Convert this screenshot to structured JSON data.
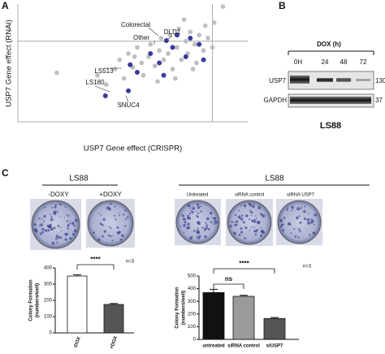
{
  "panel_labels": [
    "A",
    "B",
    "C"
  ],
  "chart_data": [
    {
      "type": "scatter",
      "xlabel": "USP7 Gene effect (CRISPR)",
      "ylabel": "USP7 Gene effect (RNAi)",
      "xlim": [
        -2.2,
        0.4
      ],
      "ylim": [
        -1.3,
        0.6
      ],
      "reference_lines": {
        "x": 0,
        "y": 0
      },
      "series": [
        {
          "name": "Other",
          "color": "#bfbfbf",
          "x": [
            -1.76,
            0.12,
            -1.3,
            -1.2,
            -1.1,
            -1.05,
            -1.0,
            -0.95,
            -0.9,
            -0.85,
            -0.8,
            -0.78,
            -0.72,
            -0.7,
            -0.65,
            -0.6,
            -0.58,
            -0.55,
            -0.5,
            -0.48,
            -0.45,
            -0.4,
            -0.38,
            -0.35,
            -0.3,
            -0.28,
            -0.25,
            -0.2,
            -0.18,
            -0.15,
            -0.1,
            -0.08,
            -0.05,
            0.0,
            0.02,
            -0.62,
            -0.42,
            -0.88,
            -0.32,
            -0.22
          ],
          "y": [
            -0.51,
            0.56,
            -0.55,
            -0.7,
            -0.45,
            -0.3,
            -0.6,
            -0.2,
            -0.42,
            -0.1,
            -0.35,
            -0.55,
            -0.25,
            -0.05,
            -0.4,
            -0.15,
            0.05,
            -0.3,
            -0.2,
            0.1,
            -0.45,
            -0.1,
            0.2,
            -0.3,
            0.0,
            -0.2,
            0.15,
            -0.05,
            -0.35,
            0.1,
            -0.15,
            0.25,
            0.05,
            -0.1,
            0.3,
            -0.65,
            -0.6,
            -0.25,
            0.35,
            -0.45
          ]
        },
        {
          "name": "Colorectal",
          "color": "#3a3a9c",
          "x": [
            -1.21,
            -0.95,
            -0.93,
            -0.85,
            -0.7,
            -0.6,
            -0.52,
            -0.45,
            -0.4,
            -0.3,
            -0.25,
            -0.15,
            -0.1,
            -0.55
          ],
          "y": [
            -0.88,
            -0.8,
            -0.38,
            -0.5,
            -0.2,
            -0.35,
            0.01,
            -0.1,
            0.1,
            -0.25,
            0.05,
            -0.05,
            -0.3,
            -0.55
          ]
        }
      ],
      "annotations": [
        "DLD1",
        "LS513",
        "LS180",
        "SNUC4"
      ]
    },
    {
      "type": "bar",
      "ylabel": [
        "Colony Formation",
        "(numbers/well)"
      ],
      "categories": [
        "-DOX",
        "+DOX"
      ],
      "values": [
        350,
        175
      ],
      "errors": [
        8,
        6
      ],
      "colors": [
        "#ffffff",
        "#555555"
      ],
      "ylim": [
        0,
        400
      ],
      "yticks": [
        0,
        100,
        200,
        300,
        400
      ],
      "significance": [
        "****"
      ],
      "n": "n=3"
    },
    {
      "type": "bar",
      "ylabel": [
        "Colony Formation",
        "(numbers/well)"
      ],
      "categories": [
        "untreated",
        "siRNA control",
        "siUSP7"
      ],
      "values": [
        370,
        340,
        165
      ],
      "errors": [
        25,
        8,
        8
      ],
      "colors": [
        "#111111",
        "#9a9a9a",
        "#555555"
      ],
      "ylim": [
        0,
        500
      ],
      "yticks": [
        0,
        100,
        200,
        300,
        400,
        500
      ],
      "significance": [
        "ns",
        "****"
      ],
      "n": "n=3"
    }
  ],
  "western_blot": {
    "treatment": "DOX (h)",
    "lanes": [
      "0H",
      "24",
      "48",
      "72"
    ],
    "proteins": [
      "USP7",
      "GAPDH"
    ],
    "markers": [
      "130",
      "37"
    ],
    "cell_line": "LS88"
  },
  "plates": {
    "left": {
      "title": "LS88",
      "conditions": [
        "-DOXY",
        "+DOXY"
      ]
    },
    "right": {
      "title": "LS88",
      "conditions": [
        "Untreated",
        "siRNA control",
        "siRNA USP7"
      ]
    }
  }
}
